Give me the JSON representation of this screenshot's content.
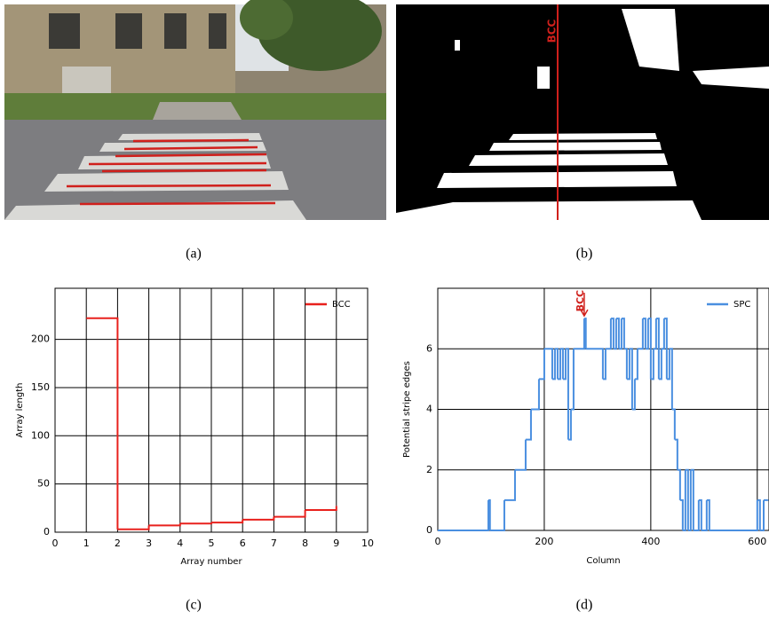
{
  "captions": [
    "(a)",
    "(b)",
    "(c)",
    "(d)"
  ],
  "image_b": {
    "label": "BCC"
  },
  "chart_data": [
    {
      "type": "step",
      "xlabel": "Array number",
      "ylabel": "Array length",
      "x": [
        1,
        2,
        3,
        4,
        5,
        6,
        7,
        8,
        9
      ],
      "series": [
        {
          "name": "BCC",
          "color": "#e8211d",
          "values": [
            222,
            3,
            7,
            9,
            10,
            13,
            16,
            23,
            27
          ]
        }
      ],
      "xlim": [
        0,
        10
      ],
      "ylim": [
        0,
        253
      ],
      "xticks": [
        0,
        1,
        2,
        3,
        4,
        5,
        6,
        7,
        8,
        9,
        10
      ],
      "yticks": [
        0,
        50,
        100,
        150,
        200
      ],
      "grid": true,
      "legend": "upper right"
    },
    {
      "type": "step",
      "xlabel": "Column",
      "ylabel": "Potential stripe edges",
      "x": [
        0,
        95,
        98,
        125,
        145,
        165,
        175,
        190,
        200,
        215,
        220,
        225,
        230,
        235,
        240,
        245,
        250,
        255,
        275,
        278,
        310,
        315,
        325,
        330,
        335,
        340,
        345,
        350,
        355,
        360,
        365,
        370,
        375,
        385,
        390,
        395,
        400,
        405,
        410,
        415,
        420,
        425,
        430,
        435,
        440,
        445,
        450,
        455,
        460,
        465,
        470,
        475,
        480,
        490,
        495,
        505,
        510,
        600,
        605,
        612,
        620
      ],
      "series": [
        {
          "name": "SPC",
          "color": "#4a8fe0",
          "values": [
            0,
            1,
            0,
            1,
            2,
            3,
            4,
            5,
            6,
            5,
            6,
            5,
            6,
            5,
            6,
            3,
            4,
            6,
            7,
            6,
            5,
            6,
            7,
            6,
            7,
            6,
            7,
            6,
            5,
            6,
            4,
            5,
            6,
            7,
            6,
            7,
            5,
            6,
            7,
            5,
            6,
            7,
            5,
            6,
            4,
            3,
            2,
            1,
            0,
            2,
            0,
            2,
            0,
            1,
            0,
            1,
            0,
            1,
            0,
            1,
            1
          ]
        }
      ],
      "xlim": [
        0,
        622
      ],
      "ylim": [
        0,
        8
      ],
      "xticks": [
        0,
        200,
        400,
        600
      ],
      "yticks": [
        0,
        2,
        4,
        6
      ],
      "grid": true,
      "legend": "upper right",
      "annotations": [
        {
          "text": "BCC",
          "x": 275
        }
      ]
    }
  ]
}
